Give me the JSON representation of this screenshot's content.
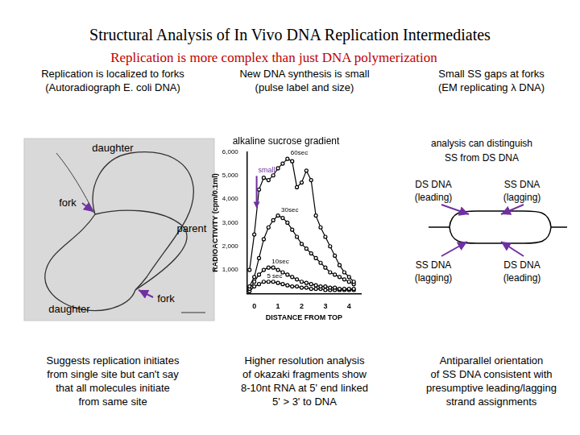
{
  "header": {
    "title": "Structural Analysis of In Vivo DNA Replication Intermediates",
    "subtitle": "Replication is more complex than just DNA polymerization"
  },
  "panels": [
    {
      "heading": [
        "Replication is localized to forks",
        "(Autoradiograph E. coli DNA)"
      ],
      "labels": [
        "daughter",
        "fork",
        "parent",
        "daughter",
        "fork"
      ],
      "caption": [
        "Suggests replication initiates",
        "from single site but can't say",
        "that all molecules initiate",
        "from same site"
      ]
    },
    {
      "heading": [
        "New DNA synthesis is small",
        "(pulse label and size)"
      ],
      "caption": [
        "Higher resolution analysis",
        "of okazaki fragments show",
        "8-10nt RNA at 5' end linked",
        "5' > 3' to DNA"
      ]
    },
    {
      "heading": [
        "Small SS gaps at forks",
        "(EM replicating λ DNA)"
      ],
      "note": [
        "analysis can distinguish",
        "SS from DS DNA"
      ],
      "labels": [
        {
          "text": "DS DNA",
          "sub": "(leading)"
        },
        {
          "text": "SS DNA",
          "sub": "(lagging)"
        },
        {
          "text": "SS DNA",
          "sub": "(lagging)"
        },
        {
          "text": "DS DNA",
          "sub": "(leading)"
        }
      ],
      "caption": [
        "Antiparallel orientation",
        "of SS DNA consistent with",
        "presumptive leading/lagging",
        "strand assignments"
      ]
    }
  ],
  "chart_data": {
    "type": "line",
    "title": "alkaline sucrose gradient",
    "x_label": "DISTANCE FROM TOP",
    "y_label": "RADIOACTIVITY (cpm/0.1ml)",
    "x": [
      -0.2,
      0,
      0.2,
      0.4,
      0.6,
      0.8,
      1.0,
      1.2,
      1.4,
      1.6,
      1.8,
      2.0,
      2.2,
      2.4,
      2.6,
      2.8,
      3.0,
      3.2,
      3.4,
      3.6,
      3.8,
      4.0,
      4.2
    ],
    "series": [
      {
        "name": "60sec",
        "color": "#000000",
        "marker": "circle",
        "values": [
          1000,
          2500,
          4400,
          4900,
          4800,
          5000,
          5300,
          5500,
          5700,
          5600,
          4500,
          4700,
          5200,
          4800,
          3300,
          2800,
          2400,
          2000,
          1600,
          1200,
          900,
          700,
          500
        ]
      },
      {
        "name": "30sec",
        "color": "#000000",
        "marker": "circle",
        "values": [
          300,
          700,
          1500,
          2300,
          2800,
          3100,
          3300,
          3200,
          3000,
          2700,
          2400,
          2100,
          1900,
          1700,
          1500,
          1300,
          1100,
          900,
          800,
          700,
          600,
          500,
          400
        ]
      },
      {
        "name": "10sec",
        "color": "#000000",
        "marker": "circle",
        "values": [
          200,
          500,
          800,
          1000,
          1100,
          1100,
          1000,
          900,
          800,
          700,
          600,
          500,
          450,
          400,
          350,
          300,
          300,
          250,
          250,
          200,
          200,
          200,
          200
        ]
      },
      {
        "name": "5 sec",
        "color": "#000000",
        "marker": "circle",
        "values": [
          100,
          300,
          400,
          500,
          500,
          500,
          450,
          400,
          350,
          300,
          300,
          250,
          250,
          200,
          200,
          200,
          150,
          150,
          150,
          150,
          150,
          150,
          150
        ]
      }
    ],
    "xlim": [
      -0.3,
      4.5
    ],
    "xticks": [
      0,
      1,
      2,
      3,
      4
    ],
    "ylim": [
      0,
      6000
    ],
    "yticks": [
      {
        "value": 1000,
        "label": "1,000"
      },
      {
        "value": 2000,
        "label": "2,000"
      },
      {
        "value": 3000,
        "label": "3,000"
      },
      {
        "value": 4000,
        "label": "4,000"
      },
      {
        "value": 5000,
        "label": "5,000"
      },
      {
        "value": 6000,
        "label": "6,000"
      }
    ],
    "annotations": [
      {
        "text": "small",
        "x": 0.1
      }
    ],
    "grid": false,
    "legend": false
  }
}
